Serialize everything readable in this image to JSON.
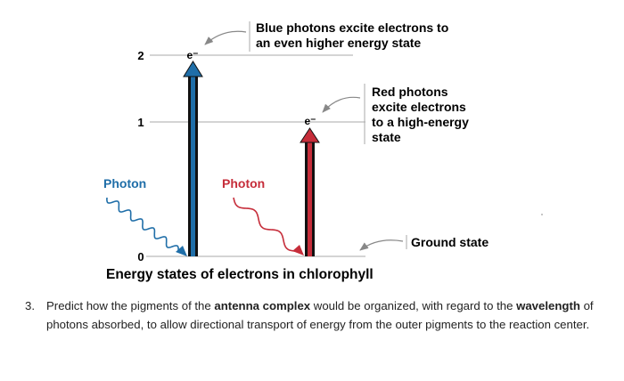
{
  "diagram": {
    "title": "Energy states of electrons in chlorophyll",
    "levels": [
      {
        "value": "2",
        "label": "2"
      },
      {
        "value": "1",
        "label": "1"
      },
      {
        "value": "0",
        "label": "0"
      }
    ],
    "electron_symbol": "e⁻",
    "blue_caption_line1": "Blue photons excite electrons to",
    "blue_caption_line2": "an even higher energy state",
    "red_caption_line1": "Red photons",
    "red_caption_line2": "excite electrons",
    "red_caption_line3": "to a high-energy",
    "red_caption_line4": "state",
    "ground_label": "Ground state",
    "blue_photon_label": "Photon",
    "red_photon_label": "Photon",
    "stray_mark": "ˈ",
    "colors": {
      "blue": "#1f6ea8",
      "red": "#c62d3a",
      "text": "#222222",
      "level_line": "#aaaaaa",
      "pointer": "#888888"
    }
  },
  "question": {
    "number": "3.",
    "part1": "Predict how the pigments of the ",
    "bold1": "antenna complex",
    "part2": " would be organized, with regard to the ",
    "bold2": "wavelength",
    "part3": " of photons absorbed, to allow directional transport of energy from the outer pigments to the reaction center."
  }
}
